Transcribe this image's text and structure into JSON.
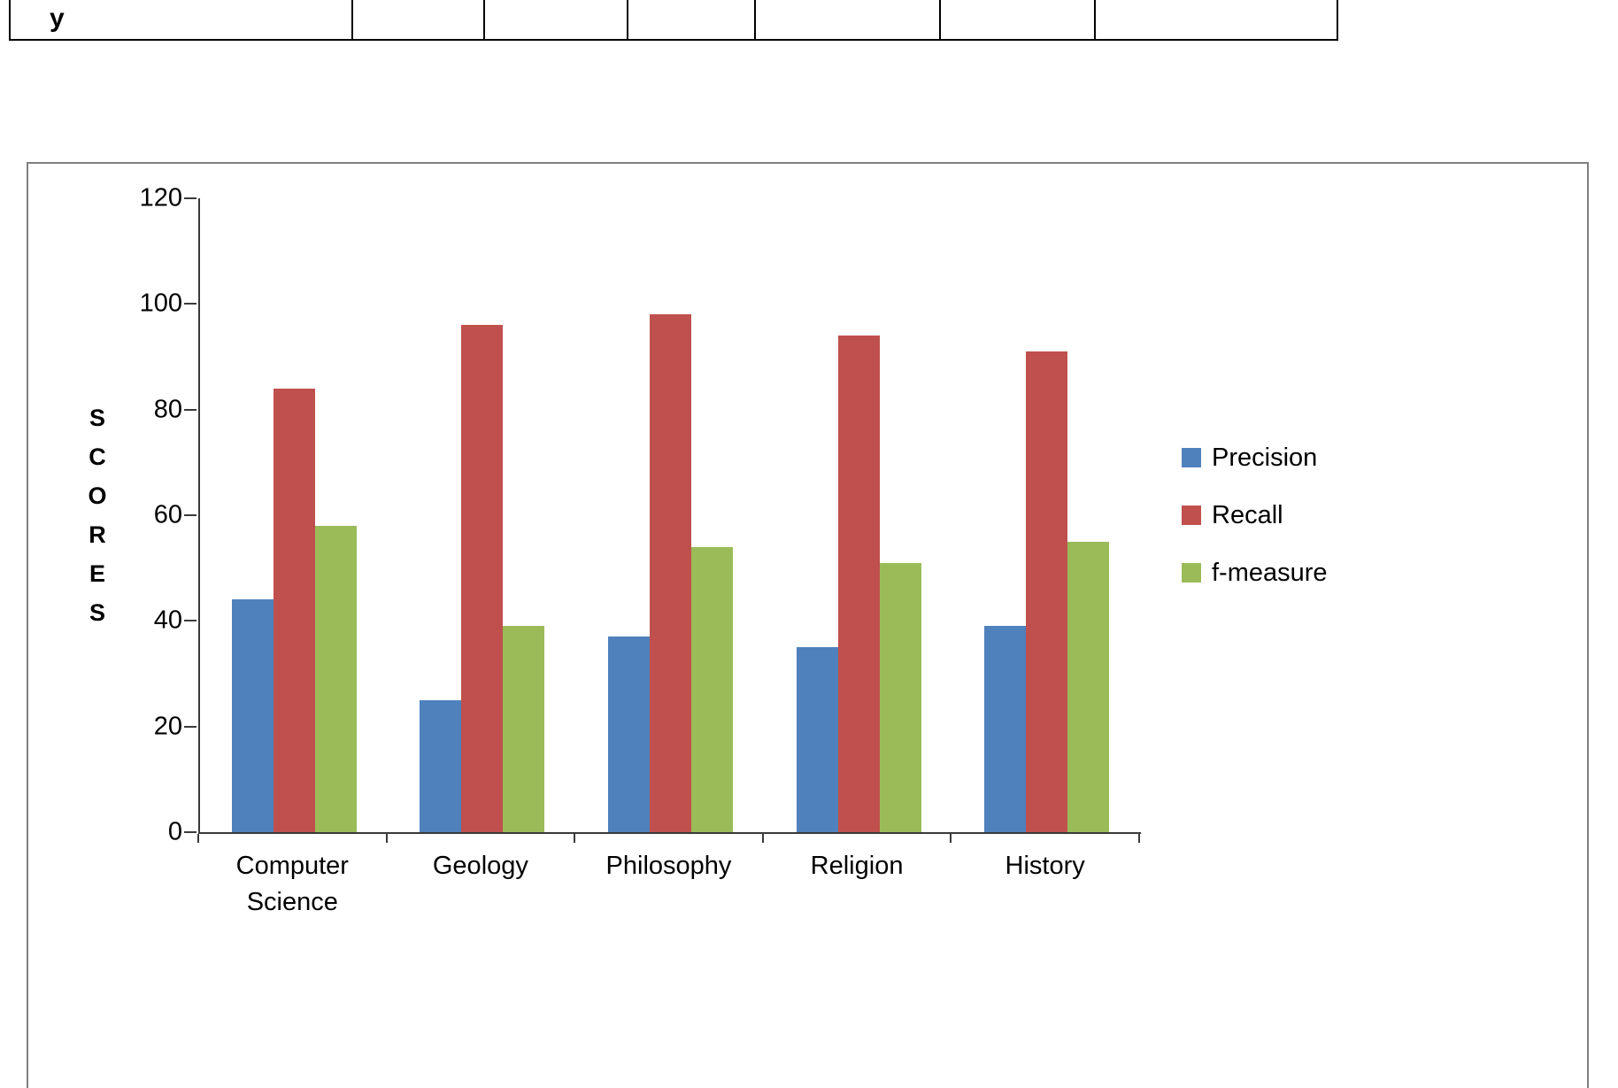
{
  "table_fragment": {
    "cells": [
      "y",
      "",
      "",
      "",
      "",
      "",
      ""
    ]
  },
  "chart_data": {
    "type": "bar",
    "title": "",
    "xlabel": "",
    "ylabel": "SCORES",
    "ylim": [
      0,
      120
    ],
    "yticks": [
      0,
      20,
      40,
      60,
      80,
      100,
      120
    ],
    "grid": false,
    "legend_position": "right",
    "categories": [
      "Computer Science",
      "Geology",
      "Philosophy",
      "Religion",
      "History"
    ],
    "series": [
      {
        "name": "Precision",
        "color": "#4F81BD",
        "values": [
          44,
          25,
          37,
          35,
          39
        ]
      },
      {
        "name": "Recall",
        "color": "#C0504D",
        "values": [
          84,
          96,
          98,
          94,
          91
        ]
      },
      {
        "name": "f-measure",
        "color": "#9BBB59",
        "values": [
          58,
          39,
          54,
          51,
          55
        ]
      }
    ]
  }
}
